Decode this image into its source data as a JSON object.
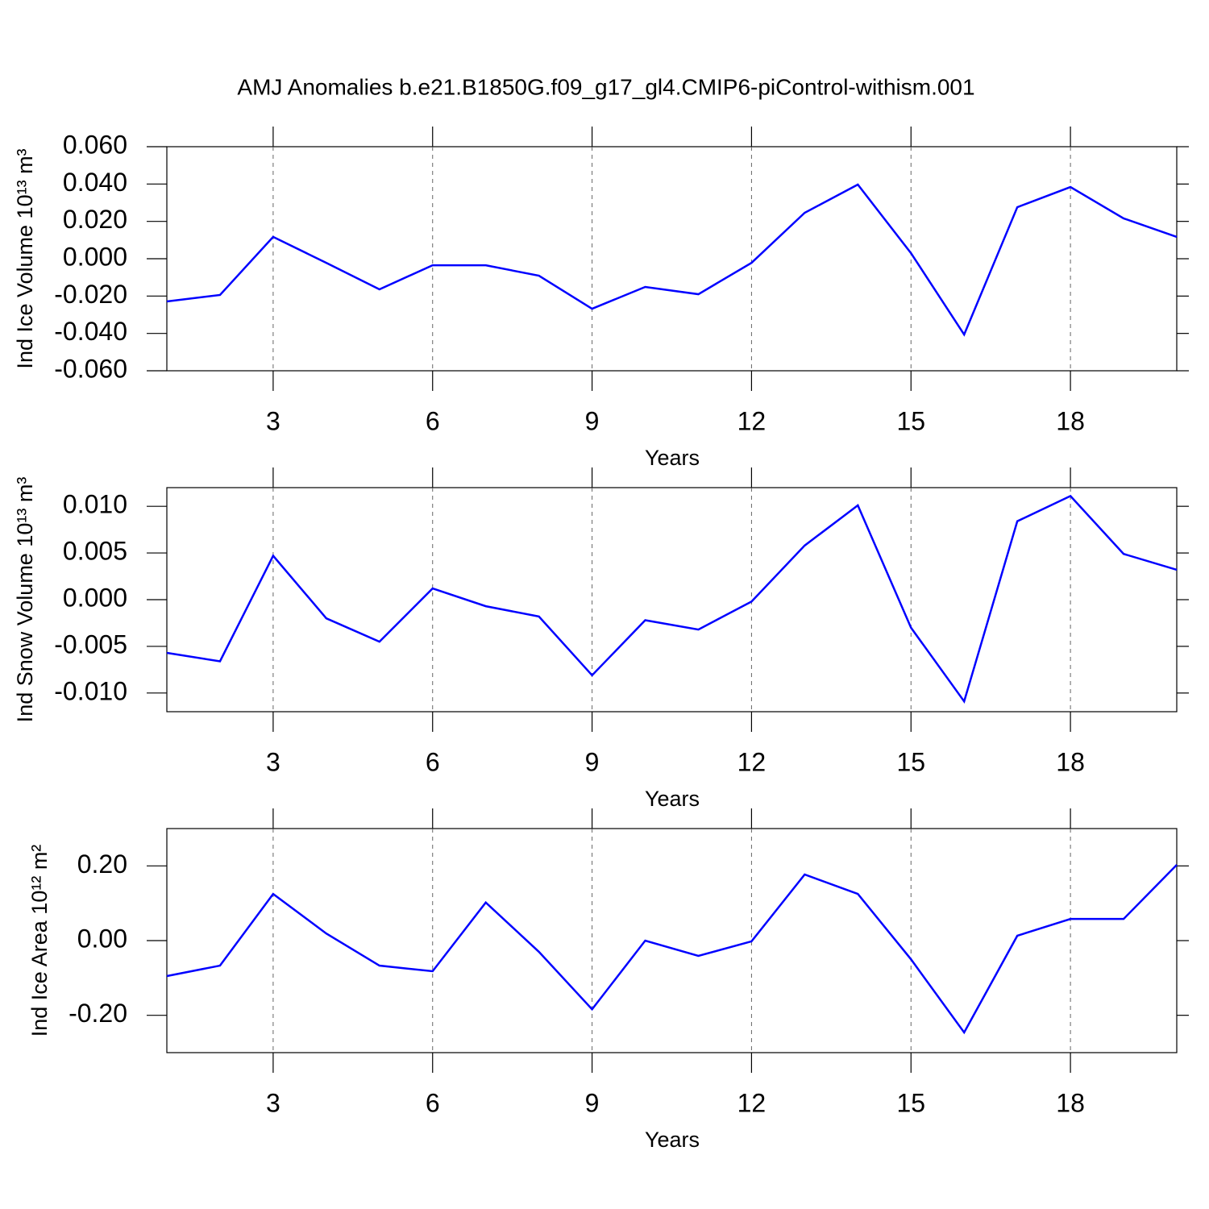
{
  "title": "AMJ Anomalies b.e21.B1850G.f09_g17_gl4.CMIP6-piControl-withism.001",
  "chart_data": [
    {
      "type": "line",
      "x_label": "Years",
      "y_label": "Ind Ice Volume 10¹³ m³",
      "x": [
        1,
        2,
        3,
        4,
        5,
        6,
        7,
        8,
        9,
        10,
        11,
        12,
        13,
        14,
        15,
        16,
        17,
        18,
        19,
        20
      ],
      "xlim": [
        1,
        20
      ],
      "xticks": [
        3,
        6,
        9,
        12,
        15,
        18
      ],
      "grid": true,
      "ylim": [
        -0.06,
        0.06
      ],
      "yticks": [
        {
          "value": -0.06,
          "label": "-0.060"
        },
        {
          "value": -0.04,
          "label": "-0.040"
        },
        {
          "value": -0.02,
          "label": "-0.020"
        },
        {
          "value": 0,
          "label": "0.000"
        },
        {
          "value": 0.02,
          "label": "0.020"
        },
        {
          "value": 0.04,
          "label": "0.040"
        },
        {
          "value": 0.06,
          "label": "0.060"
        }
      ],
      "series": [
        {
          "color": "#0000ff",
          "values": [
            -0.0229,
            -0.0194,
            0.0117,
            -0.0022,
            -0.0164,
            -0.0035,
            -0.0035,
            -0.0091,
            -0.0268,
            -0.0151,
            -0.019,
            -0.0022,
            0.0246,
            0.0397,
            0.003,
            -0.0406,
            0.0276,
            0.0384,
            0.0216,
            0.0117
          ]
        }
      ]
    },
    {
      "type": "line",
      "x_label": "Years",
      "y_label": "Ind Snow Volume 10¹³ m³",
      "x": [
        1,
        2,
        3,
        4,
        5,
        6,
        7,
        8,
        9,
        10,
        11,
        12,
        13,
        14,
        15,
        16,
        17,
        18,
        19,
        20
      ],
      "xlim": [
        1,
        20
      ],
      "xticks": [
        3,
        6,
        9,
        12,
        15,
        18
      ],
      "grid": true,
      "ylim": [
        -0.012,
        0.012
      ],
      "yticks": [
        {
          "value": -0.01,
          "label": "-0.010"
        },
        {
          "value": -0.005,
          "label": "-0.005"
        },
        {
          "value": 0,
          "label": "0.000"
        },
        {
          "value": 0.005,
          "label": "0.005"
        },
        {
          "value": 0.01,
          "label": "0.010"
        }
      ],
      "series": [
        {
          "color": "#0000ff",
          "values": [
            -0.0057,
            -0.0066,
            0.0047,
            -0.002,
            -0.0045,
            0.0012,
            -0.0007,
            -0.0018,
            -0.0081,
            -0.0022,
            -0.0032,
            -0.0002,
            0.0058,
            0.0101,
            -0.003,
            -0.0109,
            0.0084,
            0.0111,
            0.0049,
            0.0032
          ]
        }
      ]
    },
    {
      "type": "line",
      "x_label": "Years",
      "y_label": "Ind Ice Area 10¹² m²",
      "x": [
        1,
        2,
        3,
        4,
        5,
        6,
        7,
        8,
        9,
        10,
        11,
        12,
        13,
        14,
        15,
        16,
        17,
        18,
        19,
        20
      ],
      "xlim": [
        1,
        20
      ],
      "xticks": [
        3,
        6,
        9,
        12,
        15,
        18
      ],
      "grid": true,
      "ylim": [
        -0.3,
        0.3
      ],
      "yticks": [
        {
          "value": -0.2,
          "label": "-0.20"
        },
        {
          "value": 0,
          "label": "0.00"
        },
        {
          "value": 0.2,
          "label": "0.20"
        }
      ],
      "series": [
        {
          "color": "#0000ff",
          "values": [
            -0.095,
            -0.067,
            0.125,
            0.019,
            -0.067,
            -0.082,
            0.102,
            -0.03,
            -0.184,
            0.0,
            -0.041,
            -0.002,
            0.177,
            0.125,
            -0.05,
            -0.246,
            0.013,
            0.058,
            0.058,
            0.203
          ]
        }
      ]
    }
  ]
}
